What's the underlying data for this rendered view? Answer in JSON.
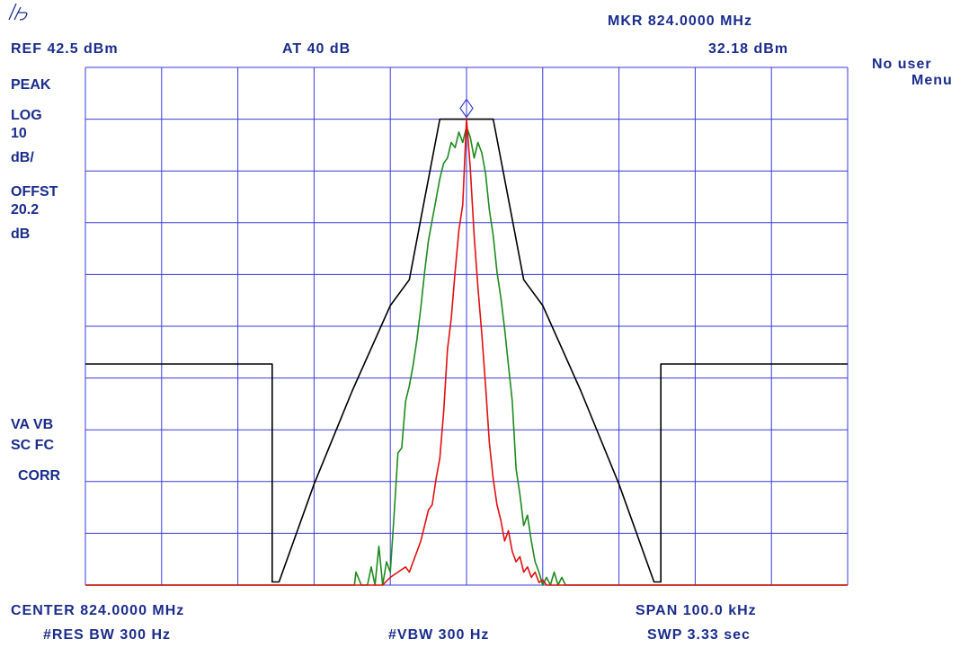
{
  "header": {
    "marker_freq": "MKR 824.0000 MHz",
    "ref_level": "REF 42.5 dBm",
    "attenuation": "AT 40 dB",
    "marker_level": "32.18 dBm"
  },
  "softkey_panel": {
    "line1": "No user",
    "line2": "Menu"
  },
  "left_annotations": {
    "detector": "PEAK",
    "scale_type": "LOG",
    "scale_value": "10",
    "scale_unit": "dB/",
    "offset_label": "OFFST",
    "offset_value": "20.2",
    "offset_unit": "dB",
    "flags_line1": "VA VB",
    "flags_line2": "SC FC",
    "corr": "CORR"
  },
  "footer": {
    "center": "CENTER 824.0000 MHz",
    "span": "SPAN 100.0 kHz",
    "res_bw": "#RES BW 300 Hz",
    "vbw": "#VBW 300 Hz",
    "sweep": "SWP 3.33 sec"
  },
  "colors": {
    "grid": "#3a3ad8",
    "text": "#1a2c8c",
    "mask": "#000000",
    "trace_green": "#1e8a1e",
    "trace_red": "#e01010",
    "marker": "#3a3ad8"
  },
  "chart_data": {
    "type": "line",
    "x_unit": "kHz offset from center",
    "y_unit": "dBm",
    "xlim": [
      -50,
      50
    ],
    "ylim": [
      -57.5,
      42.5
    ],
    "grid": true,
    "x_divisions": 10,
    "y_divisions": 10,
    "marker": {
      "x": 0,
      "y": 32.18
    },
    "series": [
      {
        "x": [
          -50,
          -25.5,
          -25.5,
          -24.6,
          -20,
          -15,
          -10,
          -7.5,
          -5.9,
          -3.5,
          -0.5,
          0.5,
          3.5,
          5.9,
          7.5,
          10,
          15,
          20,
          24.6,
          25.5,
          25.5,
          50
        ],
        "y": [
          -14.8,
          -14.8,
          -56.9,
          -56.9,
          -38,
          -20,
          -3.5,
          1.5,
          14,
          32.5,
          32.5,
          32.5,
          32.5,
          14,
          1.5,
          -3.5,
          -20,
          -38,
          -56.9,
          -56.9,
          -14.8,
          -14.8
        ]
      },
      {
        "x": [
          -50,
          -14.7,
          -14.5,
          -13.8,
          -13,
          -12.5,
          -12,
          -11.5,
          -11,
          -10.5,
          -10,
          -9.5,
          -9,
          -8.5,
          -8,
          -7.5,
          -7,
          -6.5,
          -6,
          -5.5,
          -5,
          -4.5,
          -4,
          -3.5,
          -3,
          -2.5,
          -2,
          -1.5,
          -1,
          -0.5,
          0,
          0.5,
          1,
          1.5,
          2,
          2.5,
          3,
          3.5,
          4,
          4.5,
          5,
          5.5,
          6,
          6.5,
          7,
          7.5,
          8,
          8.5,
          9,
          9.5,
          10,
          10.5,
          11,
          11.5,
          12,
          12.5,
          13,
          13.5,
          14,
          50
        ],
        "y": [
          -57.5,
          -57.5,
          -55,
          -57.5,
          -57.5,
          -54,
          -57.5,
          -50,
          -57.5,
          -53,
          -55,
          -44,
          -32,
          -31,
          -22,
          -19,
          -15,
          -10,
          -4,
          3,
          9,
          13,
          17,
          21,
          24,
          25,
          28,
          27,
          30,
          28,
          31,
          29,
          25,
          28,
          26,
          22,
          15,
          10,
          3,
          -2,
          -8,
          -15,
          -22,
          -35,
          -40,
          -46,
          -44,
          -49,
          -53,
          -55,
          -57.5,
          -56,
          -57.5,
          -55,
          -57.5,
          -56,
          -57.5,
          -57.5,
          -57.5,
          -57.5
        ]
      },
      {
        "x": [
          -50,
          -11,
          -10,
          -9,
          -8,
          -7.5,
          -7,
          -6.5,
          -6,
          -5.5,
          -5,
          -4.5,
          -4,
          -3.5,
          -3,
          -2.5,
          -2,
          -1.5,
          -1,
          -0.5,
          0,
          0.5,
          1,
          1.5,
          2,
          2.5,
          3,
          3.5,
          4,
          4.5,
          5,
          5.5,
          6,
          6.5,
          7,
          7.5,
          8,
          8.5,
          9,
          9.5,
          10,
          10.5,
          11,
          50
        ],
        "y": [
          -57.5,
          -57.5,
          -56,
          -55,
          -54,
          -55,
          -53,
          -51,
          -49,
          -46,
          -43,
          -42,
          -37,
          -33,
          -24,
          -12,
          -6,
          3,
          11,
          16,
          32.5,
          23,
          10,
          0,
          -9,
          -19,
          -30,
          -37,
          -42,
          -45,
          -49,
          -47,
          -51,
          -53,
          -52,
          -55,
          -54,
          -56,
          -55,
          -57,
          -56.5,
          -57.5,
          -57.5,
          -57.5
        ]
      }
    ]
  }
}
